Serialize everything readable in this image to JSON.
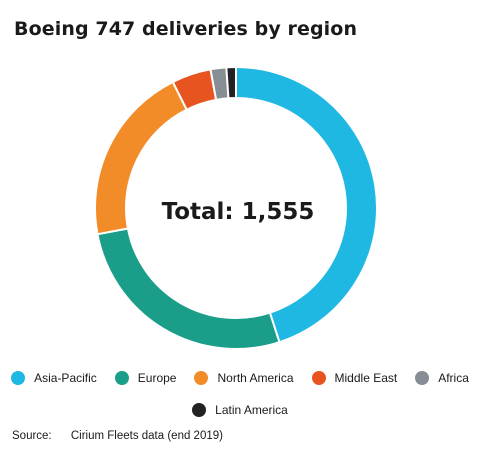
{
  "chart_data": {
    "type": "pie",
    "variant": "donut",
    "title": "Boeing 747 deliveries by region",
    "center_label": "Total: 1,555",
    "total": 1555,
    "categories": [
      "Asia-Pacific",
      "Europe",
      "North America",
      "Middle East",
      "Africa",
      "Latin America"
    ],
    "values": [
      700,
      420,
      320,
      70,
      28,
      17
    ],
    "colors": [
      "#1fb8e3",
      "#1a9e8a",
      "#f28c28",
      "#e8541f",
      "#868d94",
      "#222222"
    ],
    "legend_position": "bottom"
  },
  "source": {
    "label": "Source:",
    "text": "Cirium Fleets data (end 2019)"
  }
}
